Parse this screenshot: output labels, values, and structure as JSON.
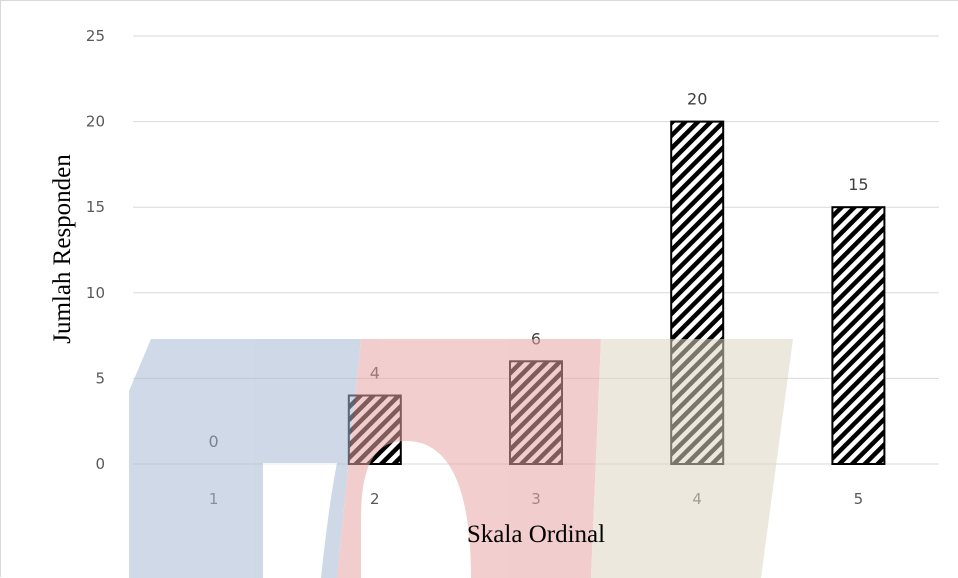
{
  "chart_data": {
    "type": "bar",
    "title": "",
    "xlabel": "Skala Ordinal",
    "ylabel": "Jumlah Responden",
    "categories": [
      "1",
      "2",
      "3",
      "4",
      "5"
    ],
    "values": [
      0,
      4,
      6,
      20,
      15
    ],
    "data_labels": [
      "0",
      "4",
      "6",
      "20",
      "15"
    ],
    "ylim": [
      0,
      25
    ],
    "yticks": [
      0,
      5,
      10,
      15,
      20,
      25
    ],
    "grid": true,
    "legend": "none",
    "bar_fill": "diagonal-hatch",
    "colors": {
      "bar_stroke": "#000000",
      "hatch": "#000000",
      "grid": "#d9d9d9",
      "tick_text": "#595959"
    }
  },
  "watermark": {
    "colors": {
      "blue": "#a9b9d3",
      "red": "#e9a6a6",
      "tan": "#ddd6c3"
    }
  }
}
